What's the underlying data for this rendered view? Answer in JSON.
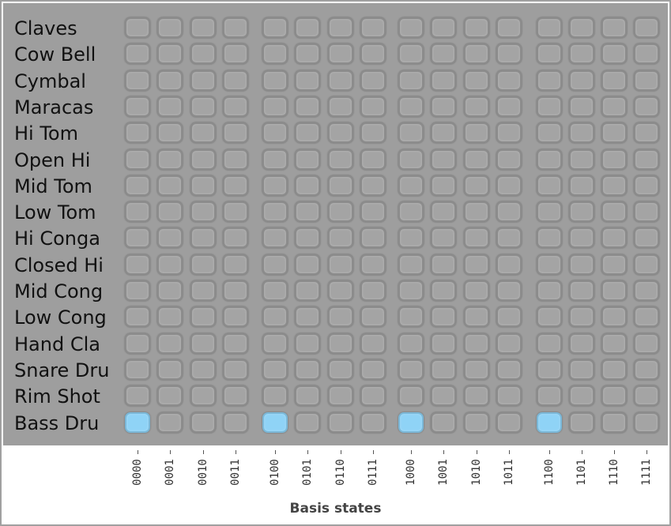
{
  "instruments": [
    "Claves",
    "Cow Bell",
    "Cymbal",
    "Maracas",
    "Hi Tom",
    "Open Hi",
    "Mid Tom",
    "Low Tom",
    "Hi Conga",
    "Closed Hi",
    "Mid Cong",
    "Low Cong",
    "Hand Cla",
    "Snare Dru",
    "Rim Shot",
    "Bass Dru"
  ],
  "steps": [
    "0000",
    "0001",
    "0010",
    "0011",
    "0100",
    "0101",
    "0110",
    "0111",
    "1000",
    "1001",
    "1010",
    "1011",
    "1100",
    "1101",
    "1110",
    "1111"
  ],
  "active_pads": [
    {
      "row": 15,
      "step": 0
    },
    {
      "row": 15,
      "step": 4
    },
    {
      "row": 15,
      "step": 8
    },
    {
      "row": 15,
      "step": 12
    }
  ],
  "axis_title": "Basis states",
  "colors": {
    "pad_on": "#8fd3f6",
    "pad_off": "#a4a4a4",
    "panel": "#9e9e9e"
  }
}
